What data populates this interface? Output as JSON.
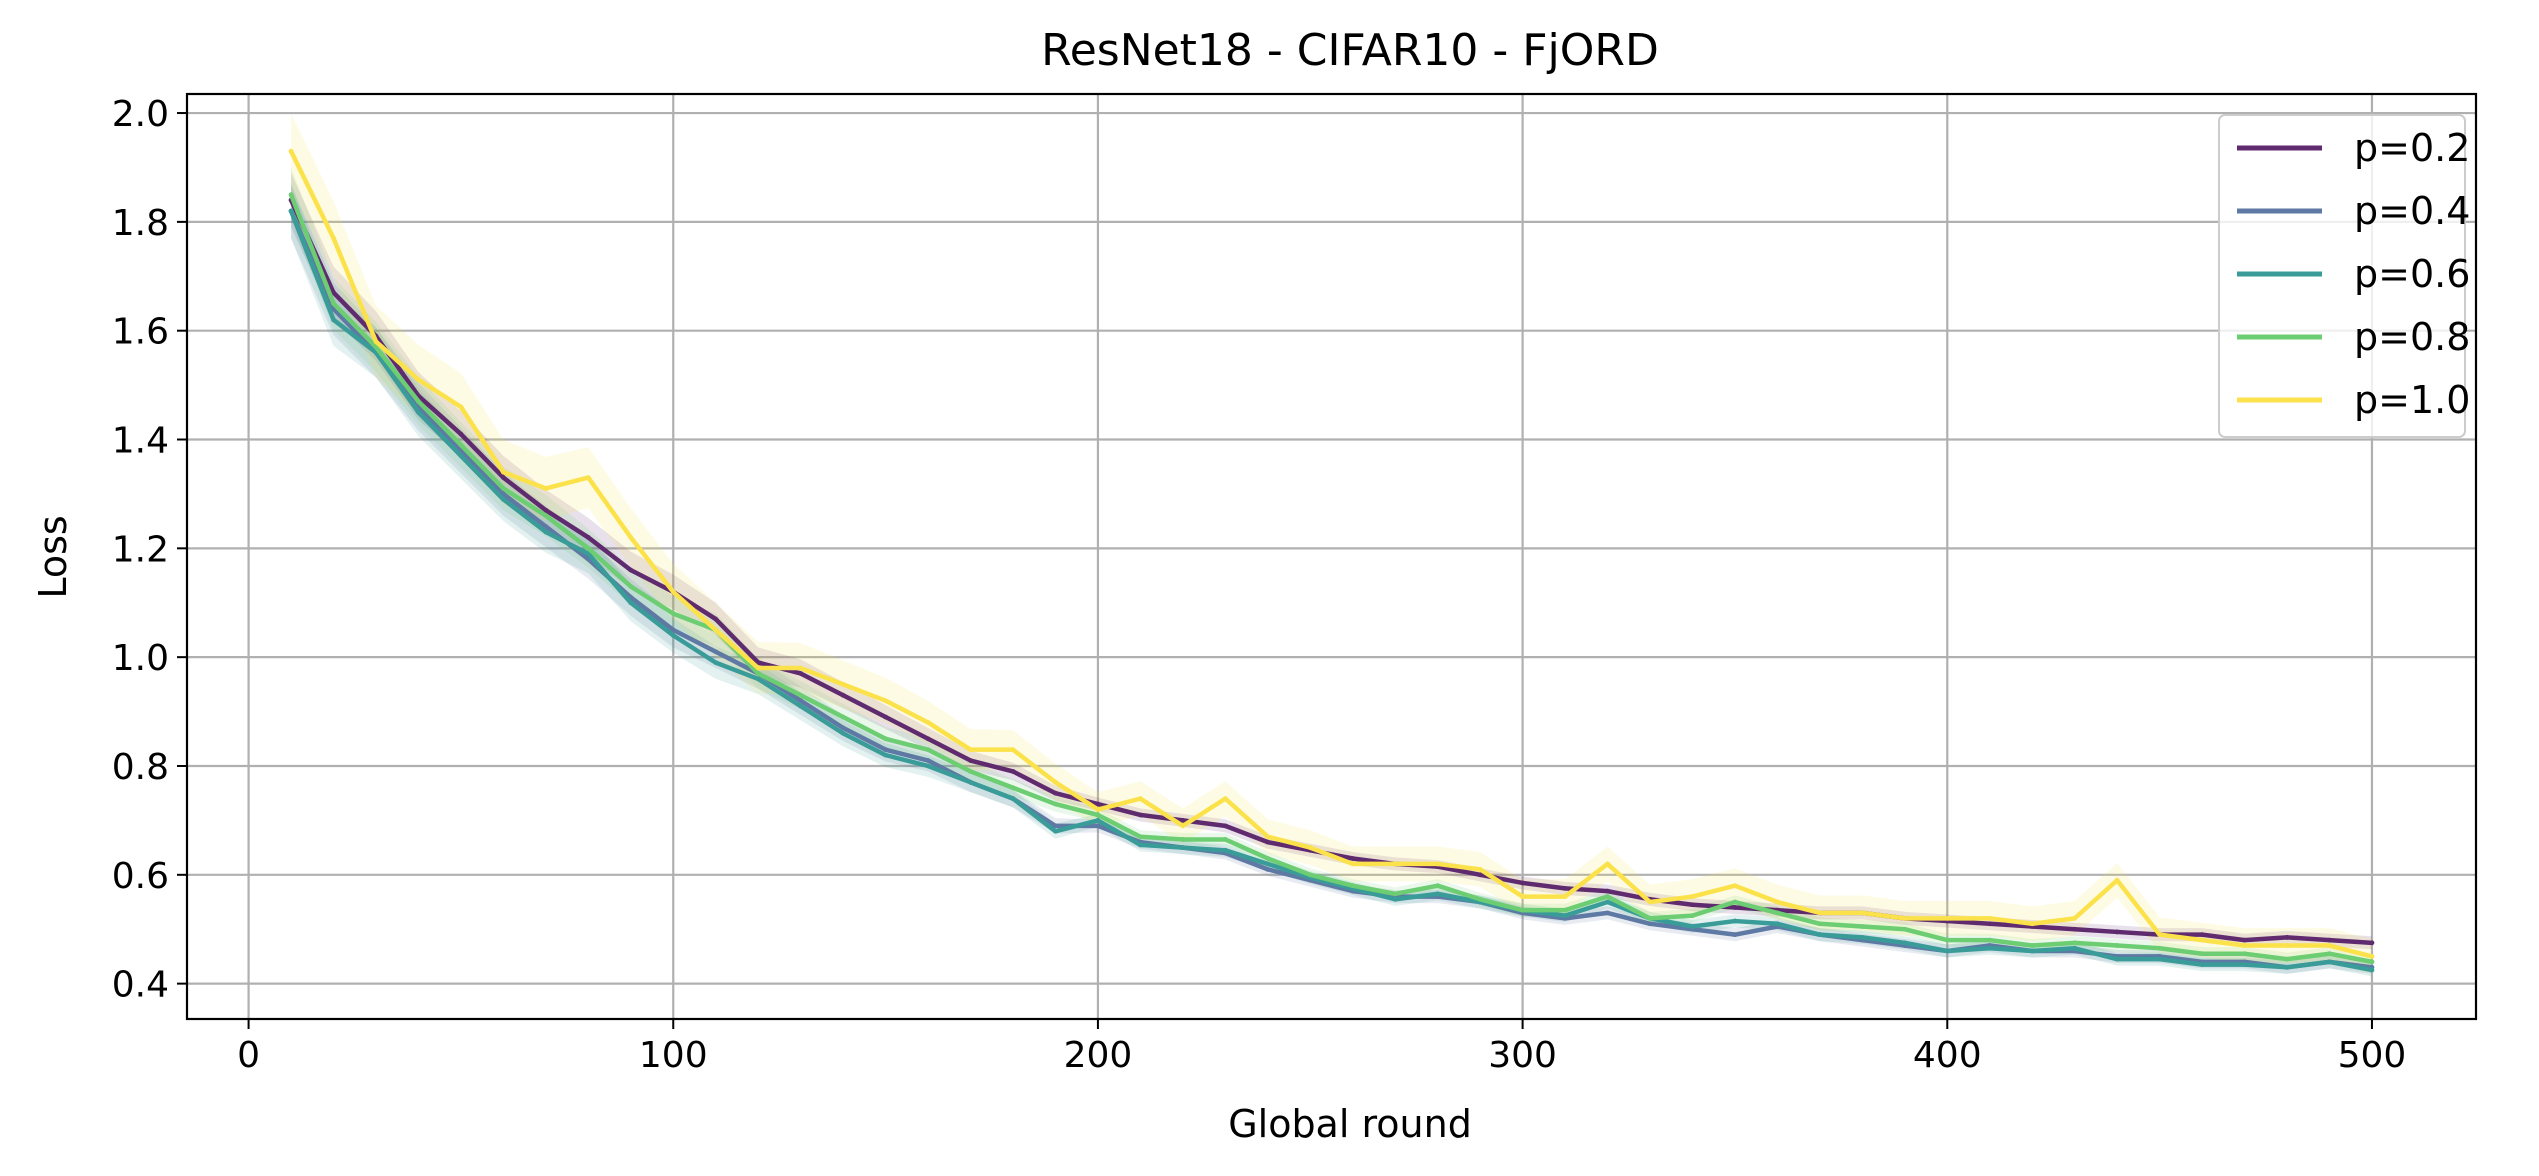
{
  "chart_data": {
    "type": "line",
    "title": "ResNet18 - CIFAR10 - FjORD",
    "xlabel": "Global round",
    "ylabel": "Loss",
    "xlim": [
      -14.5,
      524.5
    ],
    "ylim": [
      0.335,
      2.035
    ],
    "xticks": [
      0,
      100,
      200,
      300,
      400,
      500
    ],
    "yticks": [
      0.4,
      0.6,
      0.8,
      1.0,
      1.2,
      1.4,
      1.6,
      1.8,
      2.0
    ],
    "xtick_labels": [
      "0",
      "100",
      "200",
      "300",
      "400",
      "500"
    ],
    "ytick_labels": [
      "0.4",
      "0.6",
      "0.8",
      "1.0",
      "1.2",
      "1.4",
      "1.6",
      "1.8",
      "2.0"
    ],
    "grid": true,
    "legend_position": "top-right",
    "x": [
      10,
      20,
      30,
      40,
      50,
      60,
      70,
      80,
      90,
      100,
      110,
      120,
      130,
      140,
      150,
      160,
      170,
      180,
      190,
      200,
      210,
      220,
      230,
      240,
      250,
      260,
      270,
      280,
      290,
      300,
      310,
      320,
      330,
      340,
      350,
      360,
      370,
      380,
      390,
      400,
      410,
      420,
      430,
      440,
      450,
      460,
      470,
      480,
      490,
      500
    ],
    "series": [
      {
        "name": "p=0.2",
        "color": "#5f2a6e",
        "values": [
          1.84,
          1.67,
          1.59,
          1.48,
          1.41,
          1.33,
          1.27,
          1.22,
          1.16,
          1.12,
          1.07,
          0.99,
          0.97,
          0.93,
          0.89,
          0.85,
          0.81,
          0.79,
          0.75,
          0.73,
          0.71,
          0.7,
          0.69,
          0.66,
          0.645,
          0.63,
          0.62,
          0.615,
          0.6,
          0.585,
          0.575,
          0.57,
          0.555,
          0.545,
          0.54,
          0.535,
          0.53,
          0.53,
          0.52,
          0.515,
          0.51,
          0.505,
          0.5,
          0.495,
          0.49,
          0.49,
          0.48,
          0.485,
          0.48,
          0.475
        ]
      },
      {
        "name": "p=0.4",
        "color": "#5e79a3",
        "values": [
          1.82,
          1.64,
          1.56,
          1.46,
          1.38,
          1.3,
          1.24,
          1.18,
          1.11,
          1.05,
          1.01,
          0.97,
          0.92,
          0.87,
          0.83,
          0.81,
          0.77,
          0.74,
          0.69,
          0.69,
          0.66,
          0.65,
          0.64,
          0.61,
          0.59,
          0.57,
          0.56,
          0.56,
          0.55,
          0.53,
          0.52,
          0.53,
          0.51,
          0.5,
          0.49,
          0.505,
          0.49,
          0.48,
          0.47,
          0.46,
          0.47,
          0.46,
          0.46,
          0.45,
          0.45,
          0.44,
          0.44,
          0.43,
          0.44,
          0.43
        ]
      },
      {
        "name": "p=0.6",
        "color": "#3a9c98",
        "values": [
          1.82,
          1.62,
          1.56,
          1.45,
          1.37,
          1.29,
          1.23,
          1.19,
          1.1,
          1.04,
          0.99,
          0.96,
          0.91,
          0.86,
          0.82,
          0.8,
          0.77,
          0.74,
          0.68,
          0.7,
          0.655,
          0.65,
          0.645,
          0.62,
          0.595,
          0.575,
          0.555,
          0.565,
          0.55,
          0.535,
          0.525,
          0.55,
          0.52,
          0.505,
          0.515,
          0.51,
          0.49,
          0.485,
          0.475,
          0.46,
          0.465,
          0.46,
          0.465,
          0.445,
          0.445,
          0.435,
          0.435,
          0.43,
          0.44,
          0.425
        ]
      },
      {
        "name": "p=0.8",
        "color": "#6ccd72",
        "values": [
          1.85,
          1.65,
          1.57,
          1.47,
          1.39,
          1.31,
          1.26,
          1.2,
          1.13,
          1.08,
          1.05,
          0.97,
          0.93,
          0.89,
          0.85,
          0.83,
          0.79,
          0.76,
          0.73,
          0.71,
          0.67,
          0.665,
          0.665,
          0.63,
          0.6,
          0.58,
          0.565,
          0.58,
          0.555,
          0.535,
          0.535,
          0.56,
          0.52,
          0.525,
          0.55,
          0.53,
          0.51,
          0.505,
          0.5,
          0.48,
          0.48,
          0.47,
          0.475,
          0.47,
          0.465,
          0.455,
          0.455,
          0.445,
          0.455,
          0.44
        ]
      },
      {
        "name": "p=1.0",
        "color": "#fbe24a",
        "values": [
          1.93,
          1.77,
          1.58,
          1.51,
          1.46,
          1.34,
          1.31,
          1.33,
          1.22,
          1.12,
          1.05,
          0.98,
          0.98,
          0.95,
          0.92,
          0.88,
          0.83,
          0.83,
          0.77,
          0.72,
          0.74,
          0.69,
          0.74,
          0.67,
          0.65,
          0.62,
          0.62,
          0.62,
          0.61,
          0.56,
          0.56,
          0.62,
          0.55,
          0.56,
          0.58,
          0.55,
          0.53,
          0.53,
          0.52,
          0.52,
          0.52,
          0.51,
          0.52,
          0.59,
          0.49,
          0.48,
          0.47,
          0.47,
          0.47,
          0.45
        ]
      }
    ]
  }
}
